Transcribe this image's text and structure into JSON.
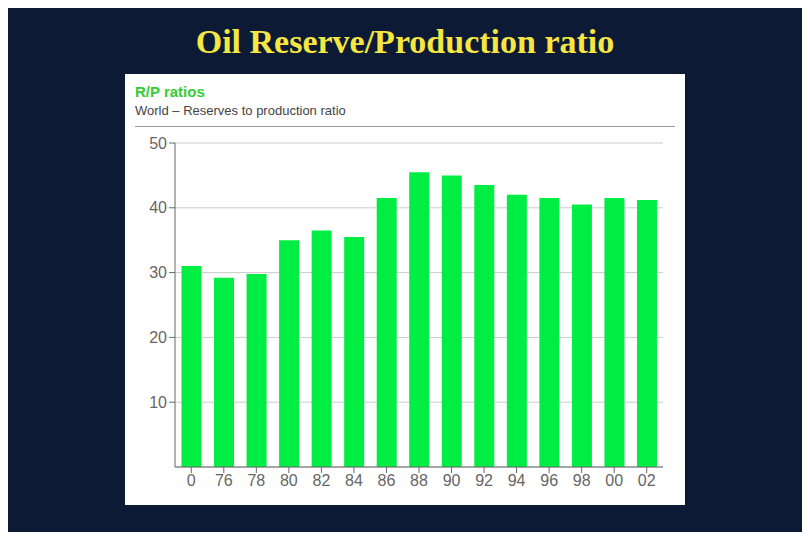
{
  "chart_data": {
    "type": "bar",
    "title": "Oil Reserve/Production ratio",
    "subtitle": [
      "R/P ratios",
      "World – Reserves to production ratio"
    ],
    "categories": [
      "0",
      "76",
      "78",
      "80",
      "82",
      "84",
      "86",
      "88",
      "90",
      "92",
      "94",
      "96",
      "98",
      "00",
      "02"
    ],
    "values": [
      31.0,
      29.2,
      29.8,
      35.0,
      36.5,
      35.5,
      41.5,
      45.5,
      45.0,
      43.5,
      42.0,
      41.5,
      40.5,
      41.5,
      41.2
    ],
    "color": "#00ee44",
    "ylim": [
      0,
      50
    ],
    "yticks": [
      10,
      20,
      30,
      40,
      50
    ],
    "grid": true
  }
}
